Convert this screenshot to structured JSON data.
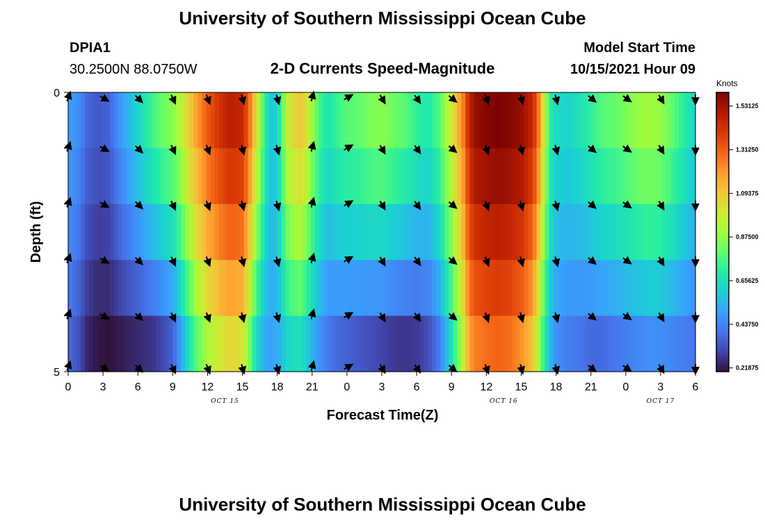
{
  "header": {
    "title": "University of Southern Mississippi Ocean Cube",
    "station_id": "DPIA1",
    "station_coords": "30.2500N  88.0750W",
    "subtitle": "2-D Currents Speed-Magnitude",
    "model_start_label": "Model Start Time",
    "model_start_value": "10/15/2021 Hour 09"
  },
  "footer": {
    "title": "University of Southern Mississippi Ocean Cube"
  },
  "colors": {
    "palette": [
      "#30123b",
      "#4145ab",
      "#4675ed",
      "#39a2fc",
      "#1bcfd4",
      "#24eca6",
      "#61fc6c",
      "#a4fc3b",
      "#d1e834",
      "#f3c63a",
      "#fe9b2d",
      "#f36315",
      "#d93806",
      "#b11901",
      "#7a0403"
    ]
  },
  "chart_data": {
    "type": "heatmap",
    "title": "2-D Currents Speed-Magnitude",
    "xlabel": "Forecast Time(Z)",
    "ylabel": "Depth (ft)",
    "x_tick_labels": [
      "0",
      "3",
      "6",
      "9",
      "12",
      "15",
      "18",
      "21",
      "0",
      "3",
      "6",
      "9",
      "12",
      "15",
      "18",
      "21",
      "0",
      "3",
      "6"
    ],
    "x_date_labels": [
      {
        "label": "OCT 15",
        "at_hour": 13.5
      },
      {
        "label": "OCT 16",
        "at_hour": 37.5
      },
      {
        "label": "OCT 17",
        "at_hour": 61.5
      }
    ],
    "x_range_hours": [
      0,
      54
    ],
    "y_tick_labels": [
      "0",
      "5"
    ],
    "ylim": [
      0,
      5
    ],
    "depth_levels_ft": [
      0,
      1,
      2,
      3,
      4,
      5
    ],
    "colorbar": {
      "unit": "Knots",
      "min": 0.2,
      "max": 1.6,
      "tick_labels": [
        "1.53125",
        "1.31250",
        "1.09375",
        "0.87500",
        "0.65625",
        "0.43750",
        "0.21875"
      ],
      "tick_values": [
        1.53125,
        1.3125,
        1.09375,
        0.875,
        0.65625,
        0.4375,
        0.21875
      ]
    },
    "speed_profile": {
      "hours": [
        0,
        1,
        1.5,
        2.5,
        3.5,
        4.5,
        5.5,
        7,
        8,
        9,
        9.5,
        10,
        11,
        12,
        13,
        14,
        15,
        15.5,
        16,
        16.5,
        17,
        17.5,
        18,
        18.5,
        19,
        20,
        20.5,
        21,
        21.5,
        22,
        22.5,
        23,
        24,
        25,
        26,
        27,
        28,
        29,
        30,
        31,
        32,
        33,
        34,
        34.5,
        35,
        36,
        37,
        38,
        39,
        40,
        40.5,
        41,
        41.5,
        42,
        43,
        44,
        45,
        46,
        47,
        48,
        49,
        50,
        51,
        52,
        53,
        54
      ],
      "surface": [
        0.5,
        0.45,
        0.38,
        0.34,
        0.36,
        0.48,
        0.58,
        0.72,
        0.8,
        0.86,
        0.92,
        1.0,
        1.18,
        1.32,
        1.42,
        1.48,
        1.45,
        1.32,
        1.12,
        0.9,
        0.68,
        0.58,
        0.62,
        0.82,
        1.0,
        1.1,
        1.02,
        0.88,
        0.78,
        0.7,
        0.68,
        0.72,
        0.78,
        0.8,
        0.84,
        0.86,
        0.82,
        0.78,
        0.72,
        0.68,
        0.78,
        1.0,
        1.25,
        1.45,
        1.55,
        1.58,
        1.6,
        1.58,
        1.55,
        1.45,
        1.25,
        0.95,
        0.7,
        0.64,
        0.62,
        0.66,
        0.72,
        0.78,
        0.8,
        0.84,
        0.88,
        0.9,
        0.88,
        0.8,
        0.7,
        0.62
      ],
      "bottom": [
        0.38,
        0.32,
        0.25,
        0.21,
        0.2,
        0.22,
        0.24,
        0.26,
        0.3,
        0.36,
        0.46,
        0.58,
        0.78,
        0.92,
        1.0,
        1.05,
        1.02,
        0.88,
        0.7,
        0.58,
        0.52,
        0.5,
        0.52,
        0.58,
        0.64,
        0.66,
        0.6,
        0.54,
        0.48,
        0.44,
        0.4,
        0.38,
        0.36,
        0.34,
        0.32,
        0.3,
        0.28,
        0.27,
        0.28,
        0.32,
        0.42,
        0.66,
        0.95,
        1.18,
        1.25,
        1.28,
        1.3,
        1.28,
        1.22,
        1.1,
        0.9,
        0.7,
        0.55,
        0.46,
        0.42,
        0.4,
        0.38,
        0.38,
        0.4,
        0.42,
        0.44,
        0.46,
        0.46,
        0.44,
        0.42,
        0.4
      ]
    },
    "current_vectors": {
      "hours": [
        0,
        3,
        6,
        9,
        12,
        15,
        18,
        21,
        24,
        27,
        30,
        33,
        36,
        39,
        42,
        45,
        48,
        51,
        54
      ],
      "direction_deg": [
        20,
        120,
        135,
        155,
        160,
        165,
        165,
        15,
        60,
        150,
        145,
        130,
        160,
        165,
        165,
        130,
        125,
        150,
        180
      ],
      "rows_depth_ft": [
        0,
        1,
        2,
        3,
        4,
        5
      ]
    }
  }
}
